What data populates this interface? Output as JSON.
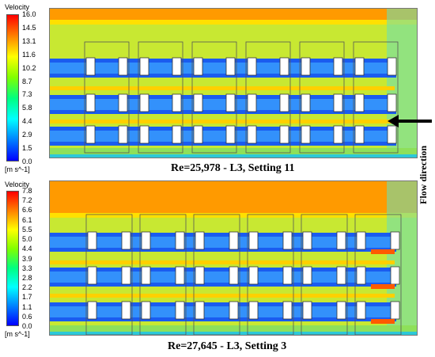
{
  "flow_direction_label": "Flow direction",
  "panels": [
    {
      "legend_title": "Velocity",
      "legend_ticks": [
        "16.0",
        "14.5",
        "13.1",
        "11.6",
        "10.2",
        "8.7",
        "7.3",
        "5.8",
        "4.4",
        "2.9",
        "1.5",
        "0.0"
      ],
      "legend_unit": "[m s^-1]",
      "caption": "Re=25,978  - L3, Setting 11"
    },
    {
      "legend_title": "Velocity",
      "legend_ticks": [
        "7.8",
        "7.2",
        "6.6",
        "6.1",
        "5.5",
        "5.0",
        "4.4",
        "3.9",
        "3.3",
        "2.8",
        "2.2",
        "1.7",
        "1.1",
        "0.6",
        "0.0"
      ],
      "legend_unit": "[m s^-1]",
      "caption": "Re=27,645  - L3, Setting 3"
    }
  ],
  "colors": {
    "colormap": [
      "#0000ff",
      "#0080ff",
      "#00ffff",
      "#00ff80",
      "#80ff00",
      "#ffff00",
      "#ff8000",
      "#ff0000"
    ],
    "field_background": "#c8e832",
    "obstacle": "#ffffff",
    "arrow": "#000000"
  }
}
